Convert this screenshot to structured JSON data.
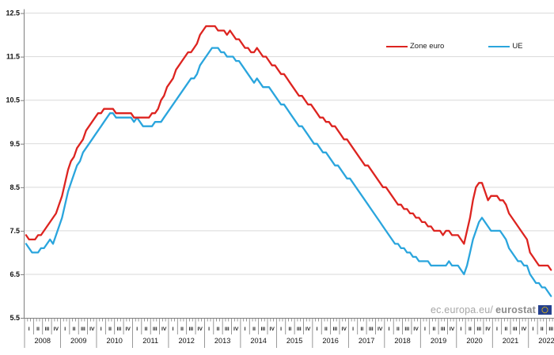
{
  "legend": {
    "items": [
      {
        "label": "Zone euro",
        "color": "#dd2420"
      },
      {
        "label": "UE",
        "color": "#2aa5dd"
      }
    ]
  },
  "watermark": {
    "prefix": "ec.europa.eu/",
    "brand": "eurostat",
    "flag_color": "#24408f",
    "star_color": "#ffcc00"
  },
  "colors": {
    "grid": "#d9d9d9",
    "axis": "#7f7f7f",
    "label": "#111111"
  },
  "chart_data": {
    "type": "line",
    "frequency": "monthly",
    "x_start": "2008-01",
    "x_end": "2022-08",
    "ylim": [
      5.5,
      12.5
    ],
    "y_ticks": [
      5.5,
      6.5,
      7.5,
      8.5,
      9.5,
      10.5,
      11.5,
      12.5
    ],
    "grid": true,
    "legend_position": "top-right",
    "years": [
      2008,
      2009,
      2010,
      2011,
      2012,
      2013,
      2014,
      2015,
      2016,
      2017,
      2018,
      2019,
      2020,
      2021,
      2022
    ],
    "quarter_labels": [
      "I",
      "II",
      "III",
      "IV"
    ],
    "series": [
      {
        "name": "Zone euro",
        "color": "#dd2420",
        "values": [
          7.4,
          7.3,
          7.3,
          7.3,
          7.4,
          7.4,
          7.5,
          7.6,
          7.7,
          7.8,
          7.9,
          8.1,
          8.3,
          8.6,
          8.9,
          9.1,
          9.2,
          9.4,
          9.5,
          9.6,
          9.8,
          9.9,
          10.0,
          10.1,
          10.2,
          10.2,
          10.3,
          10.3,
          10.3,
          10.3,
          10.2,
          10.2,
          10.2,
          10.2,
          10.2,
          10.2,
          10.1,
          10.1,
          10.1,
          10.1,
          10.1,
          10.1,
          10.2,
          10.2,
          10.3,
          10.5,
          10.6,
          10.8,
          10.9,
          11.0,
          11.2,
          11.3,
          11.4,
          11.5,
          11.6,
          11.6,
          11.7,
          11.8,
          12.0,
          12.1,
          12.2,
          12.2,
          12.2,
          12.2,
          12.1,
          12.1,
          12.1,
          12.0,
          12.1,
          12.0,
          11.9,
          11.9,
          11.8,
          11.7,
          11.7,
          11.6,
          11.6,
          11.7,
          11.6,
          11.5,
          11.5,
          11.4,
          11.3,
          11.3,
          11.2,
          11.1,
          11.1,
          11.0,
          10.9,
          10.8,
          10.7,
          10.6,
          10.6,
          10.5,
          10.4,
          10.4,
          10.3,
          10.2,
          10.1,
          10.1,
          10.0,
          10.0,
          9.9,
          9.9,
          9.8,
          9.7,
          9.6,
          9.6,
          9.5,
          9.4,
          9.3,
          9.2,
          9.1,
          9.0,
          9.0,
          8.9,
          8.8,
          8.7,
          8.6,
          8.5,
          8.5,
          8.4,
          8.3,
          8.2,
          8.1,
          8.1,
          8.0,
          8.0,
          7.9,
          7.9,
          7.8,
          7.8,
          7.7,
          7.7,
          7.6,
          7.6,
          7.5,
          7.5,
          7.5,
          7.4,
          7.5,
          7.5,
          7.4,
          7.4,
          7.4,
          7.3,
          7.2,
          7.5,
          7.8,
          8.2,
          8.5,
          8.6,
          8.6,
          8.4,
          8.2,
          8.3,
          8.3,
          8.3,
          8.2,
          8.2,
          8.1,
          7.9,
          7.8,
          7.7,
          7.6,
          7.5,
          7.4,
          7.3,
          7.0,
          6.9,
          6.8,
          6.7,
          6.7,
          6.7,
          6.7,
          6.6
        ]
      },
      {
        "name": "UE",
        "color": "#2aa5dd",
        "values": [
          7.2,
          7.1,
          7.0,
          7.0,
          7.0,
          7.1,
          7.1,
          7.2,
          7.3,
          7.2,
          7.4,
          7.6,
          7.8,
          8.1,
          8.4,
          8.6,
          8.8,
          9.0,
          9.1,
          9.3,
          9.4,
          9.5,
          9.6,
          9.7,
          9.8,
          9.9,
          10.0,
          10.1,
          10.2,
          10.2,
          10.1,
          10.1,
          10.1,
          10.1,
          10.1,
          10.1,
          10.0,
          10.1,
          10.0,
          9.9,
          9.9,
          9.9,
          9.9,
          10.0,
          10.0,
          10.0,
          10.1,
          10.2,
          10.3,
          10.4,
          10.5,
          10.6,
          10.7,
          10.8,
          10.9,
          11.0,
          11.0,
          11.1,
          11.3,
          11.4,
          11.5,
          11.6,
          11.7,
          11.7,
          11.7,
          11.6,
          11.6,
          11.5,
          11.5,
          11.5,
          11.4,
          11.4,
          11.3,
          11.2,
          11.1,
          11.0,
          10.9,
          11.0,
          10.9,
          10.8,
          10.8,
          10.8,
          10.7,
          10.6,
          10.5,
          10.4,
          10.4,
          10.3,
          10.2,
          10.1,
          10.0,
          9.9,
          9.9,
          9.8,
          9.7,
          9.6,
          9.5,
          9.5,
          9.4,
          9.3,
          9.3,
          9.2,
          9.1,
          9.0,
          9.0,
          8.9,
          8.8,
          8.7,
          8.7,
          8.6,
          8.5,
          8.4,
          8.3,
          8.2,
          8.1,
          8.0,
          7.9,
          7.8,
          7.7,
          7.6,
          7.5,
          7.4,
          7.3,
          7.2,
          7.2,
          7.1,
          7.1,
          7.0,
          7.0,
          6.9,
          6.9,
          6.8,
          6.8,
          6.8,
          6.8,
          6.7,
          6.7,
          6.7,
          6.7,
          6.7,
          6.7,
          6.8,
          6.7,
          6.7,
          6.7,
          6.6,
          6.5,
          6.7,
          7.0,
          7.3,
          7.5,
          7.7,
          7.8,
          7.7,
          7.6,
          7.5,
          7.5,
          7.5,
          7.5,
          7.4,
          7.3,
          7.1,
          7.0,
          6.9,
          6.8,
          6.8,
          6.7,
          6.7,
          6.5,
          6.4,
          6.3,
          6.3,
          6.2,
          6.2,
          6.1,
          6.0
        ]
      }
    ]
  }
}
